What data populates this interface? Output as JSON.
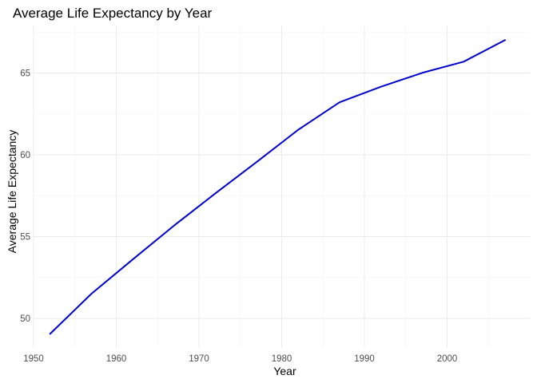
{
  "chart_data": {
    "type": "line",
    "title": "Average Life Expectancy by Year",
    "xlabel": "Year",
    "ylabel": "Average Life Expectancy",
    "xlim": [
      1950,
      2010
    ],
    "ylim": [
      48.2,
      67.9
    ],
    "x_ticks": [
      1950,
      1960,
      1970,
      1980,
      1990,
      2000
    ],
    "y_ticks": [
      50,
      55,
      60,
      65
    ],
    "x_tick_labels": [
      "1950",
      "1960",
      "1970",
      "1980",
      "1990",
      "2000"
    ],
    "y_tick_labels": [
      "50",
      "55",
      "60",
      "65"
    ],
    "grid": true,
    "legend": "none",
    "series": [
      {
        "color": "#0000cc",
        "x": [
          1952,
          1957,
          1962,
          1967,
          1972,
          1977,
          1982,
          1987,
          1992,
          1997,
          2002,
          2007
        ],
        "y": [
          49.06,
          51.51,
          53.61,
          55.68,
          57.65,
          59.57,
          61.53,
          63.21,
          64.16,
          65.01,
          65.69,
          67.01
        ]
      }
    ]
  }
}
